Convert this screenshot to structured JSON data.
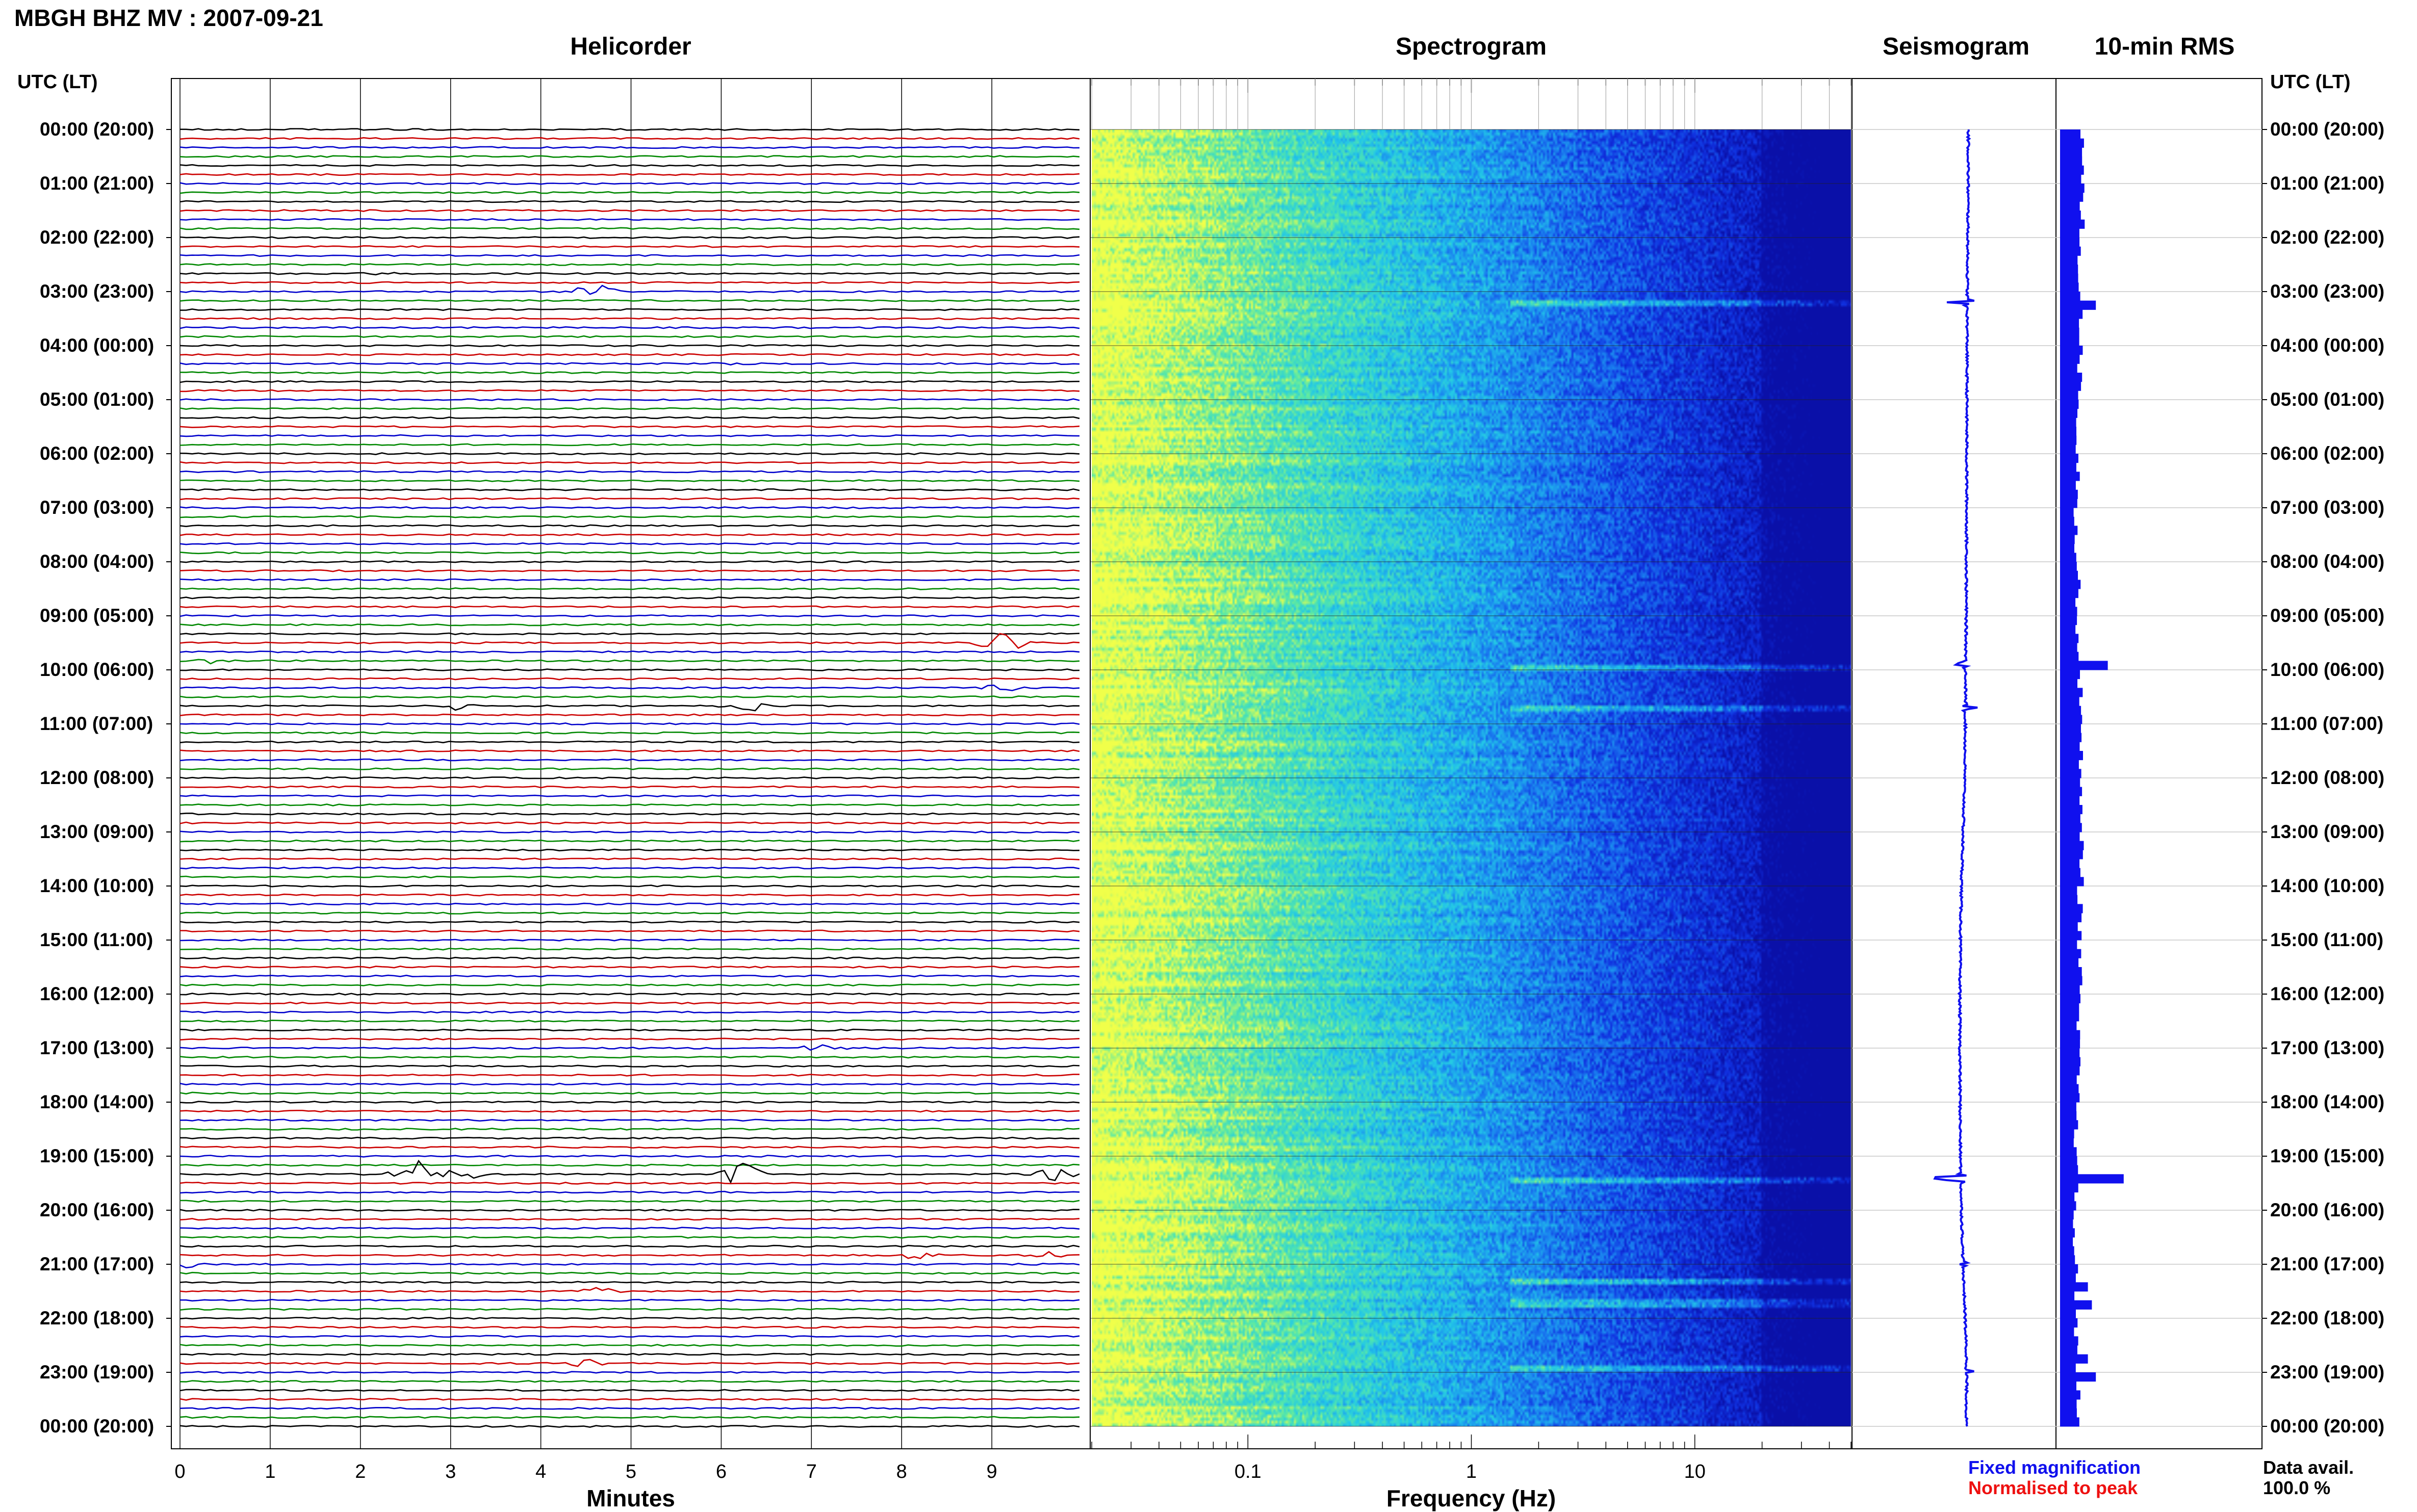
{
  "header": {
    "title": "MBGH BHZ MV : 2007-09-21",
    "left_axis_label": "UTC (LT)",
    "right_axis_label": "UTC (LT)"
  },
  "panels": {
    "helicorder": "Helicorder",
    "spectrogram": "Spectrogram",
    "seismogram": "Seismogram",
    "rms": "10-min RMS"
  },
  "legend": {
    "fixed": "Fixed magnification",
    "normalised": "Normalised to peak",
    "fixed_color": "#1010ee",
    "normalised_color": "#ee1010"
  },
  "data_availability": {
    "label": "Data avail.",
    "value": "100.0 %"
  },
  "time_labels": [
    "00:00 (20:00)",
    "01:00 (21:00)",
    "02:00 (22:00)",
    "03:00 (23:00)",
    "04:00 (00:00)",
    "05:00 (01:00)",
    "06:00 (02:00)",
    "07:00 (03:00)",
    "08:00 (04:00)",
    "09:00 (05:00)",
    "10:00 (06:00)",
    "11:00 (07:00)",
    "12:00 (08:00)",
    "13:00 (09:00)",
    "14:00 (10:00)",
    "15:00 (11:00)",
    "16:00 (12:00)",
    "17:00 (13:00)",
    "18:00 (14:00)",
    "19:00 (15:00)",
    "20:00 (16:00)",
    "21:00 (17:00)",
    "22:00 (18:00)",
    "23:00 (19:00)",
    "00:00 (20:00)"
  ],
  "chart_data": [
    {
      "type": "line",
      "title": "Helicorder",
      "xlabel": "Minutes",
      "xlim": [
        0,
        10
      ],
      "x_ticks": [
        "0",
        "1",
        "2",
        "3",
        "4",
        "5",
        "6",
        "7",
        "8",
        "9"
      ],
      "trace_interval_minutes": 10,
      "trace_colors": [
        "#000000",
        "#cc0000",
        "#0000cc",
        "#008800"
      ],
      "events": [
        {
          "time": "02:40",
          "minute": 2.3,
          "amplitude": 0.15,
          "color": "#cc0000"
        },
        {
          "time": "03:00",
          "minute": 4.6,
          "amplitude": 0.7,
          "color": "#008800"
        },
        {
          "time": "04:20",
          "minute": 6.0,
          "amplitude": 0.15,
          "color": "#008800"
        },
        {
          "time": "09:30",
          "minute": 9.1,
          "amplitude": 0.8,
          "color": "#0000cc"
        },
        {
          "time": "09:50",
          "minute": 0.3,
          "amplitude": 0.25,
          "color": "#008800"
        },
        {
          "time": "10:20",
          "minute": 9.1,
          "amplitude": 0.35,
          "color": "#008800"
        },
        {
          "time": "10:40",
          "minute": 3.1,
          "amplitude": 0.3,
          "color": "#000000"
        },
        {
          "time": "10:40",
          "minute": 6.3,
          "amplitude": 0.45,
          "color": "#000000"
        },
        {
          "time": "17:00",
          "minute": 7.1,
          "amplitude": 0.3,
          "color": "#0000cc"
        },
        {
          "time": "19:20",
          "minute": 2.6,
          "amplitude": 1.0,
          "color": "#000000"
        },
        {
          "time": "19:20",
          "minute": 3.1,
          "amplitude": 0.8,
          "color": "#000000"
        },
        {
          "time": "19:20",
          "minute": 6.2,
          "amplitude": 0.9,
          "color": "#000000"
        },
        {
          "time": "19:20",
          "minute": 9.7,
          "amplitude": 0.5,
          "color": "#000000"
        },
        {
          "time": "21:00",
          "minute": 0.1,
          "amplitude": 0.25,
          "color": "#000000"
        },
        {
          "time": "20:50",
          "minute": 8.2,
          "amplitude": 0.3,
          "color": "#008800"
        },
        {
          "time": "20:50",
          "minute": 9.6,
          "amplitude": 0.3,
          "color": "#008800"
        },
        {
          "time": "21:30",
          "minute": 4.7,
          "amplitude": 0.5,
          "color": "#0000cc"
        },
        {
          "time": "22:50",
          "minute": 4.5,
          "amplitude": 0.25,
          "color": "#cc0000"
        }
      ]
    },
    {
      "type": "heatmap",
      "title": "Spectrogram",
      "xlabel": "Frequency (Hz)",
      "x_scale": "log",
      "xlim": [
        0.02,
        50
      ],
      "x_ticks": [
        "0.1",
        "1",
        "10"
      ],
      "colormap": [
        "#f0ff4a",
        "#56e8a8",
        "#22c8e8",
        "#1a80f0",
        "#1030e0",
        "#0a10a8"
      ]
    },
    {
      "type": "line",
      "title": "Seismogram",
      "hours": [
        0,
        1,
        2,
        3,
        4,
        5,
        6,
        7,
        8,
        9,
        10,
        11,
        12,
        13,
        14,
        15,
        16,
        17,
        18,
        19,
        20,
        21,
        22,
        23,
        24
      ],
      "offset": [
        0.2,
        0.18,
        0.15,
        0.1,
        0.08,
        0.06,
        0.05,
        0.04,
        0.02,
        0.0,
        -0.05,
        -0.08,
        -0.15,
        -0.3,
        -0.45,
        -0.55,
        -0.6,
        -0.6,
        -0.58,
        -0.55,
        -0.45,
        -0.3,
        -0.1,
        0.05,
        0.0
      ],
      "spikes": [
        {
          "hour": 3.2,
          "amplitude": 0.9
        },
        {
          "hour": 9.9,
          "amplitude": 0.6
        },
        {
          "hour": 10.7,
          "amplitude": 0.5
        },
        {
          "hour": 19.4,
          "amplitude": 1.6
        },
        {
          "hour": 21.0,
          "amplitude": 0.3
        },
        {
          "hour": 23.0,
          "amplitude": 0.4
        }
      ]
    },
    {
      "type": "bar",
      "title": "10-min RMS",
      "interval_minutes": 10,
      "baseline": [
        0.55,
        0.55,
        0.5,
        0.55,
        0.5,
        0.45,
        0.45,
        0.4,
        0.45,
        0.45,
        0.5,
        0.55,
        0.5,
        0.55,
        0.5,
        0.5,
        0.45,
        0.45,
        0.4,
        0.4,
        0.35,
        0.4,
        0.4,
        0.45
      ],
      "peaks": [
        {
          "hour": 3.2,
          "value": 0.9
        },
        {
          "hour": 9.8,
          "value": 1.2
        },
        {
          "hour": 10.0,
          "value": 0.5
        },
        {
          "hour": 19.4,
          "value": 1.6
        },
        {
          "hour": 21.3,
          "value": 0.7
        },
        {
          "hour": 21.7,
          "value": 0.8
        },
        {
          "hour": 22.7,
          "value": 0.7
        },
        {
          "hour": 23.0,
          "value": 0.9
        }
      ]
    }
  ]
}
